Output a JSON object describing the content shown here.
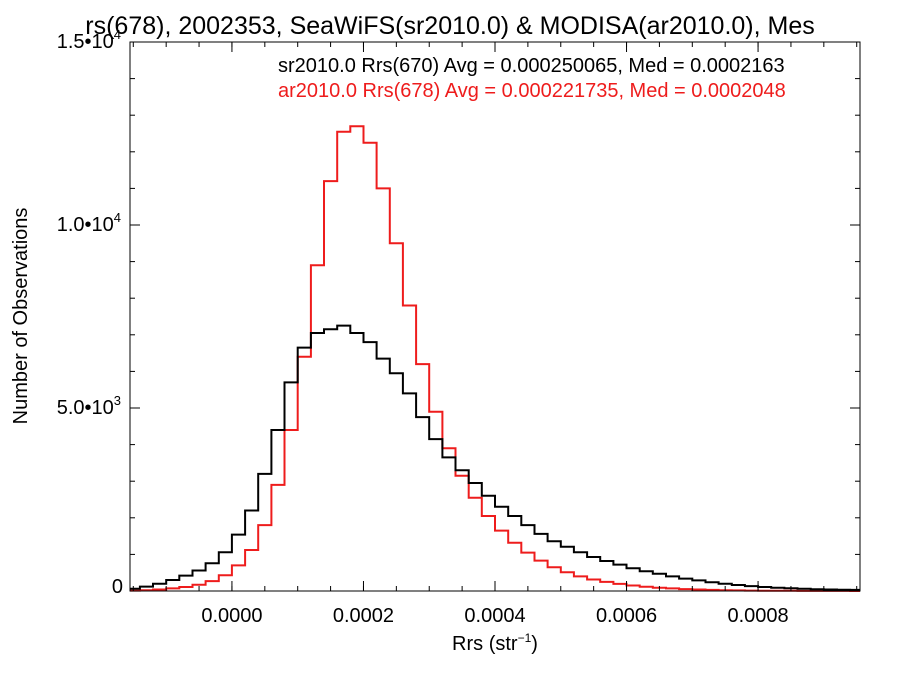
{
  "chart_data": {
    "type": "line",
    "title": "rs(678), 2002353, SeaWiFS(sr2010.0) & MODISA(ar2010.0), Mes",
    "xlabel": "Rrs (str",
    "xlabel_sup": "−1",
    "xlabel_tail": ")",
    "ylabel": "Number of Observations",
    "xlim": [
      -0.000155,
      0.000955
    ],
    "ylim": [
      0,
      15000
    ],
    "grid": false,
    "legend_placement": "top-right",
    "x_ticks": [
      {
        "value": 0.0,
        "label": "0.0000"
      },
      {
        "value": 0.0002,
        "label": "0.0002"
      },
      {
        "value": 0.0004,
        "label": "0.0004"
      },
      {
        "value": 0.0006,
        "label": "0.0006"
      },
      {
        "value": 0.0008,
        "label": "0.0008"
      }
    ],
    "y_ticks": [
      {
        "value": 0,
        "mant": "0",
        "exp": ""
      },
      {
        "value": 5000,
        "mant": "5.0•10",
        "exp": "3"
      },
      {
        "value": 10000,
        "mant": "1.0•10",
        "exp": "4"
      },
      {
        "value": 15000,
        "mant": "1.5•10",
        "exp": "4"
      }
    ],
    "series": [
      {
        "name": "sr2010.0 Rrs(670) Avg = 0.000250065, Med = 0.0002163",
        "color": "#000000",
        "x": [
          -0.00015,
          -0.00013,
          -0.00011,
          -9e-05,
          -7e-05,
          -5e-05,
          -3e-05,
          -1e-05,
          1e-05,
          3e-05,
          5e-05,
          7e-05,
          9e-05,
          0.00011,
          0.00013,
          0.00015,
          0.00017,
          0.00019,
          0.00021,
          0.00023,
          0.00025,
          0.00027,
          0.00029,
          0.00031,
          0.00033,
          0.00035,
          0.00037,
          0.00039,
          0.00041,
          0.00043,
          0.00045,
          0.00047,
          0.00049,
          0.00051,
          0.00053,
          0.00055,
          0.00057,
          0.00059,
          0.00061,
          0.00063,
          0.00065,
          0.00067,
          0.00069,
          0.00071,
          0.00073,
          0.00075,
          0.00077,
          0.00079,
          0.00081,
          0.00083,
          0.00085,
          0.00087,
          0.00089,
          0.00091,
          0.00093,
          0.00095
        ],
        "y": [
          60,
          120,
          200,
          300,
          420,
          560,
          760,
          1060,
          1540,
          2200,
          3200,
          4400,
          5700,
          6650,
          7050,
          7150,
          7250,
          7050,
          6800,
          6350,
          5950,
          5400,
          4750,
          4150,
          3650,
          3300,
          2950,
          2600,
          2300,
          2050,
          1800,
          1560,
          1360,
          1210,
          1060,
          930,
          820,
          720,
          620,
          540,
          470,
          400,
          340,
          290,
          240,
          200,
          165,
          135,
          110,
          90,
          75,
          60,
          50,
          40,
          35,
          30
        ]
      },
      {
        "name": "ar2010.0 Rrs(678) Avg = 0.000221735, Med = 0.0002048",
        "color": "#ee1c1c",
        "x": [
          -0.00015,
          -0.00013,
          -0.00011,
          -9e-05,
          -7e-05,
          -5e-05,
          -3e-05,
          -1e-05,
          1e-05,
          3e-05,
          5e-05,
          7e-05,
          9e-05,
          0.00011,
          0.00013,
          0.00015,
          0.00017,
          0.00019,
          0.00021,
          0.00023,
          0.00025,
          0.00027,
          0.00029,
          0.00031,
          0.00033,
          0.00035,
          0.00037,
          0.00039,
          0.00041,
          0.00043,
          0.00045,
          0.00047,
          0.00049,
          0.00051,
          0.00053,
          0.00055,
          0.00057,
          0.00059,
          0.00061,
          0.00063,
          0.00065,
          0.00067,
          0.00069,
          0.00071,
          0.00073,
          0.00075,
          0.00077,
          0.00079,
          0.00081,
          0.00083,
          0.00085,
          0.00087,
          0.00089,
          0.00091,
          0.00093,
          0.00095
        ],
        "y": [
          10,
          20,
          40,
          70,
          110,
          170,
          270,
          430,
          700,
          1120,
          1800,
          2900,
          4400,
          6400,
          8900,
          11200,
          12550,
          12700,
          12250,
          11000,
          9500,
          7800,
          6200,
          4900,
          3900,
          3150,
          2550,
          2050,
          1650,
          1320,
          1050,
          830,
          650,
          510,
          400,
          315,
          250,
          195,
          150,
          115,
          90,
          70,
          52,
          40,
          30,
          22,
          16,
          12,
          9,
          7,
          5,
          4,
          3,
          2,
          2,
          1
        ]
      }
    ]
  }
}
